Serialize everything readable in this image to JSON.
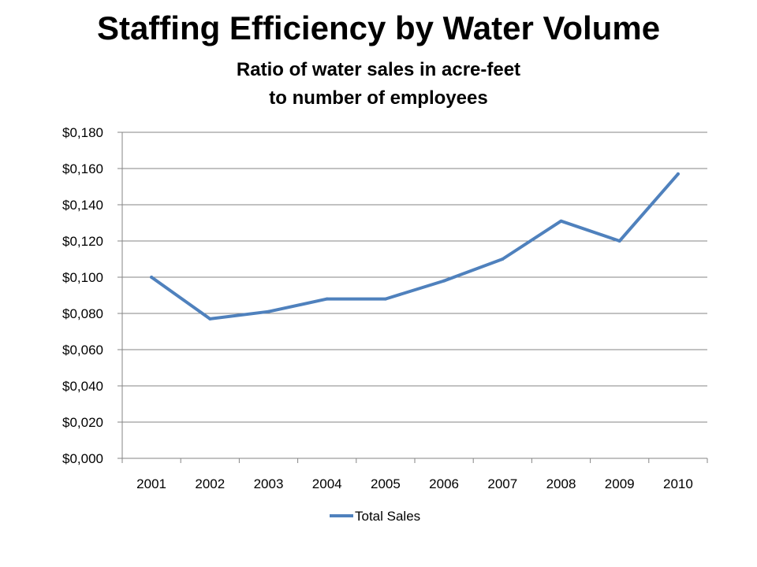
{
  "header": {
    "title": "Staffing Efficiency by Water Volume",
    "subtitle_line1": "Ratio of water sales in acre-feet",
    "subtitle_line2": "to number of employees"
  },
  "chart_data": {
    "type": "line",
    "title": "Staffing Efficiency by Water Volume",
    "subtitle": "Ratio of water sales in acre-feet to number of employees",
    "xlabel": "",
    "ylabel": "",
    "categories": [
      "2001",
      "2002",
      "2003",
      "2004",
      "2005",
      "2006",
      "2007",
      "2008",
      "2009",
      "2010"
    ],
    "series": [
      {
        "name": "Total Sales",
        "color": "#4f81bd",
        "values": [
          0.1,
          0.077,
          0.081,
          0.088,
          0.088,
          0.098,
          0.11,
          0.131,
          0.12,
          0.157
        ]
      }
    ],
    "ylim": [
      0,
      0.18
    ],
    "yticks": [
      0,
      0.02,
      0.04,
      0.06,
      0.08,
      0.1,
      0.12,
      0.14,
      0.16,
      0.18
    ],
    "ytick_labels": [
      "$0,000",
      "$0,020",
      "$0,040",
      "$0,060",
      "$0,080",
      "$0,100",
      "$0,120",
      "$0,140",
      "$0,160",
      "$0,180"
    ],
    "grid": "horizontal",
    "legend_position": "bottom"
  }
}
